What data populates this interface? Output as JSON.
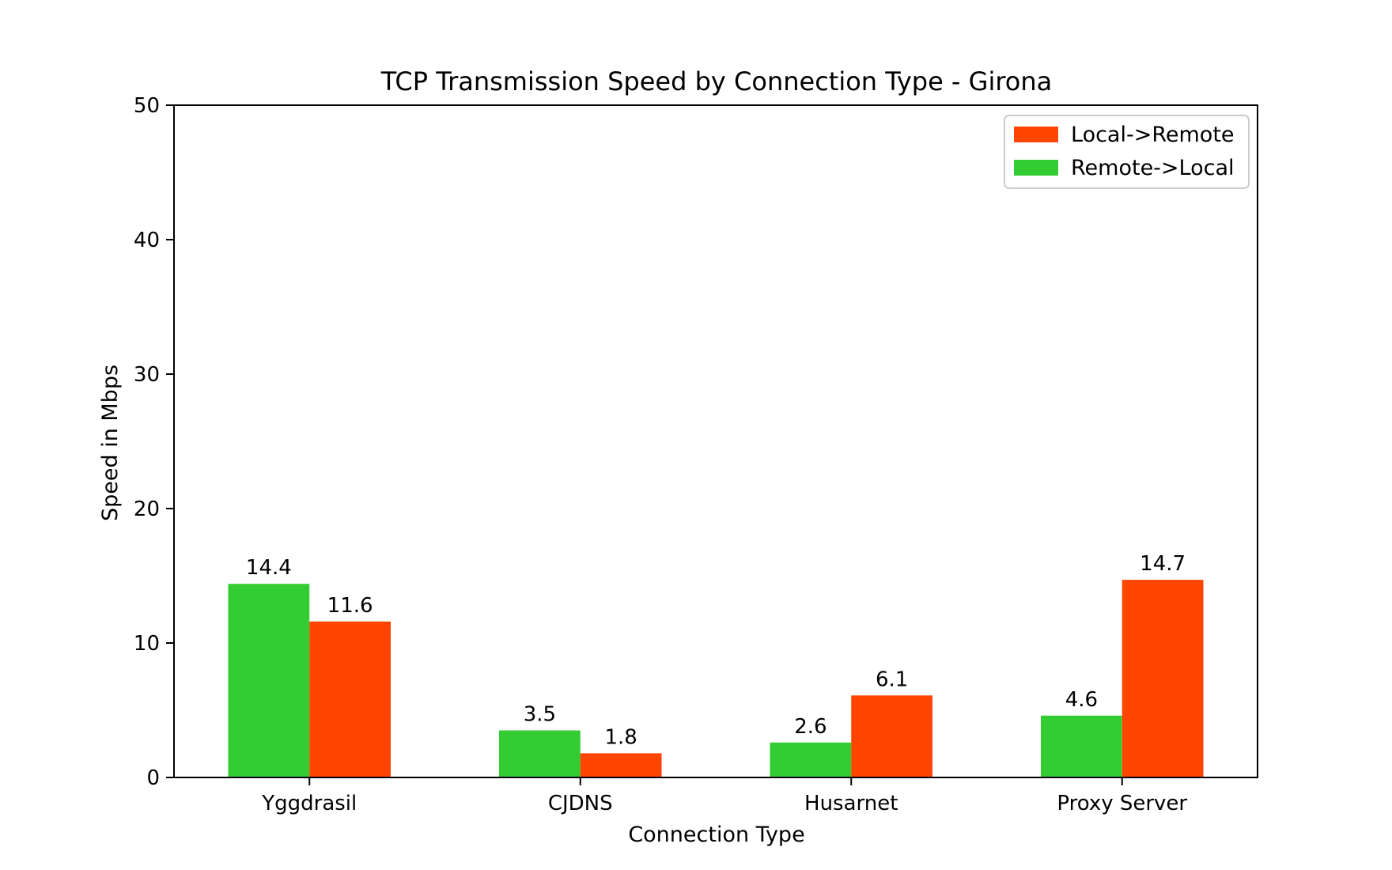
{
  "chart_data": {
    "type": "bar",
    "title": "TCP Transmission Speed by Connection Type - Girona",
    "xlabel": "Connection Type",
    "ylabel": "Speed in Mbps",
    "categories": [
      "Yggdrasil",
      "CJDNS",
      "Husarnet",
      "Proxy Server"
    ],
    "ylim": [
      0,
      50
    ],
    "yticks": [
      0,
      10,
      20,
      30,
      40,
      50
    ],
    "series": [
      {
        "name": "Remote->Local",
        "color": "#33cc33",
        "values": [
          14.4,
          3.5,
          2.6,
          4.6
        ]
      },
      {
        "name": "Local->Remote",
        "color": "#ff4500",
        "values": [
          11.6,
          1.8,
          6.1,
          14.7
        ]
      }
    ],
    "legend_order": [
      "Local->Remote",
      "Remote->Local"
    ],
    "legend_position": "upper right",
    "grid": false
  }
}
